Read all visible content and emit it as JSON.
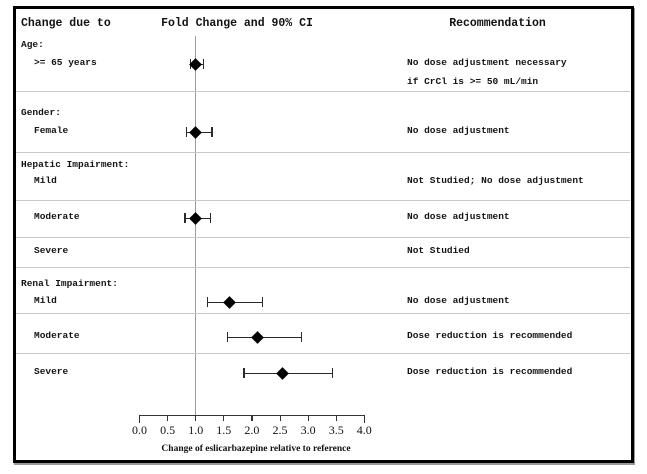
{
  "headers": {
    "change_due_to": "Change due to",
    "fold_change": "Fold Change and 90% CI",
    "recommendation": "Recommendation"
  },
  "chart_data": {
    "type": "forest",
    "title": "Fold Change and 90% CI",
    "xlabel": "Change of eslicarbazepine relative to reference",
    "xlim": [
      0.0,
      4.0
    ],
    "x_ticks": [
      0.0,
      0.5,
      1.0,
      1.5,
      2.0,
      2.5,
      3.0,
      3.5,
      4.0
    ],
    "reference_line": 1.0,
    "groups": [
      {
        "label": "Age:",
        "rows": [
          {
            "label": ">= 65 years",
            "point": 1.0,
            "ci_low": 0.9,
            "ci_high": 1.15,
            "recommendation": [
              "No dose adjustment necessary",
              "if CrCl is >= 50 mL/min"
            ]
          }
        ]
      },
      {
        "label": "Gender:",
        "rows": [
          {
            "label": "Female",
            "point": 1.0,
            "ci_low": 0.82,
            "ci_high": 1.3,
            "recommendation": [
              "No dose adjustment"
            ]
          }
        ]
      },
      {
        "label": "Hepatic Impairment:",
        "rows": [
          {
            "label": "Mild",
            "point": null,
            "ci_low": null,
            "ci_high": null,
            "recommendation": [
              "Not Studied; No dose adjustment"
            ]
          },
          {
            "label": "Moderate",
            "point": 1.0,
            "ci_low": 0.8,
            "ci_high": 1.28,
            "recommendation": [
              "No dose adjustment"
            ]
          },
          {
            "label": "Severe",
            "point": null,
            "ci_low": null,
            "ci_high": null,
            "recommendation": [
              "Not Studied"
            ]
          }
        ]
      },
      {
        "label": "Renal Impairment:",
        "rows": [
          {
            "label": "Mild",
            "point": 1.6,
            "ci_low": 1.2,
            "ci_high": 2.2,
            "recommendation": [
              "No dose adjustment"
            ]
          },
          {
            "label": "Moderate",
            "point": 2.1,
            "ci_low": 1.55,
            "ci_high": 2.9,
            "recommendation": [
              "Dose reduction is recommended"
            ]
          },
          {
            "label": "Severe",
            "point": 2.55,
            "ci_low": 1.85,
            "ci_high": 3.45,
            "recommendation": [
              "Dose reduction is recommended"
            ]
          }
        ]
      }
    ]
  }
}
